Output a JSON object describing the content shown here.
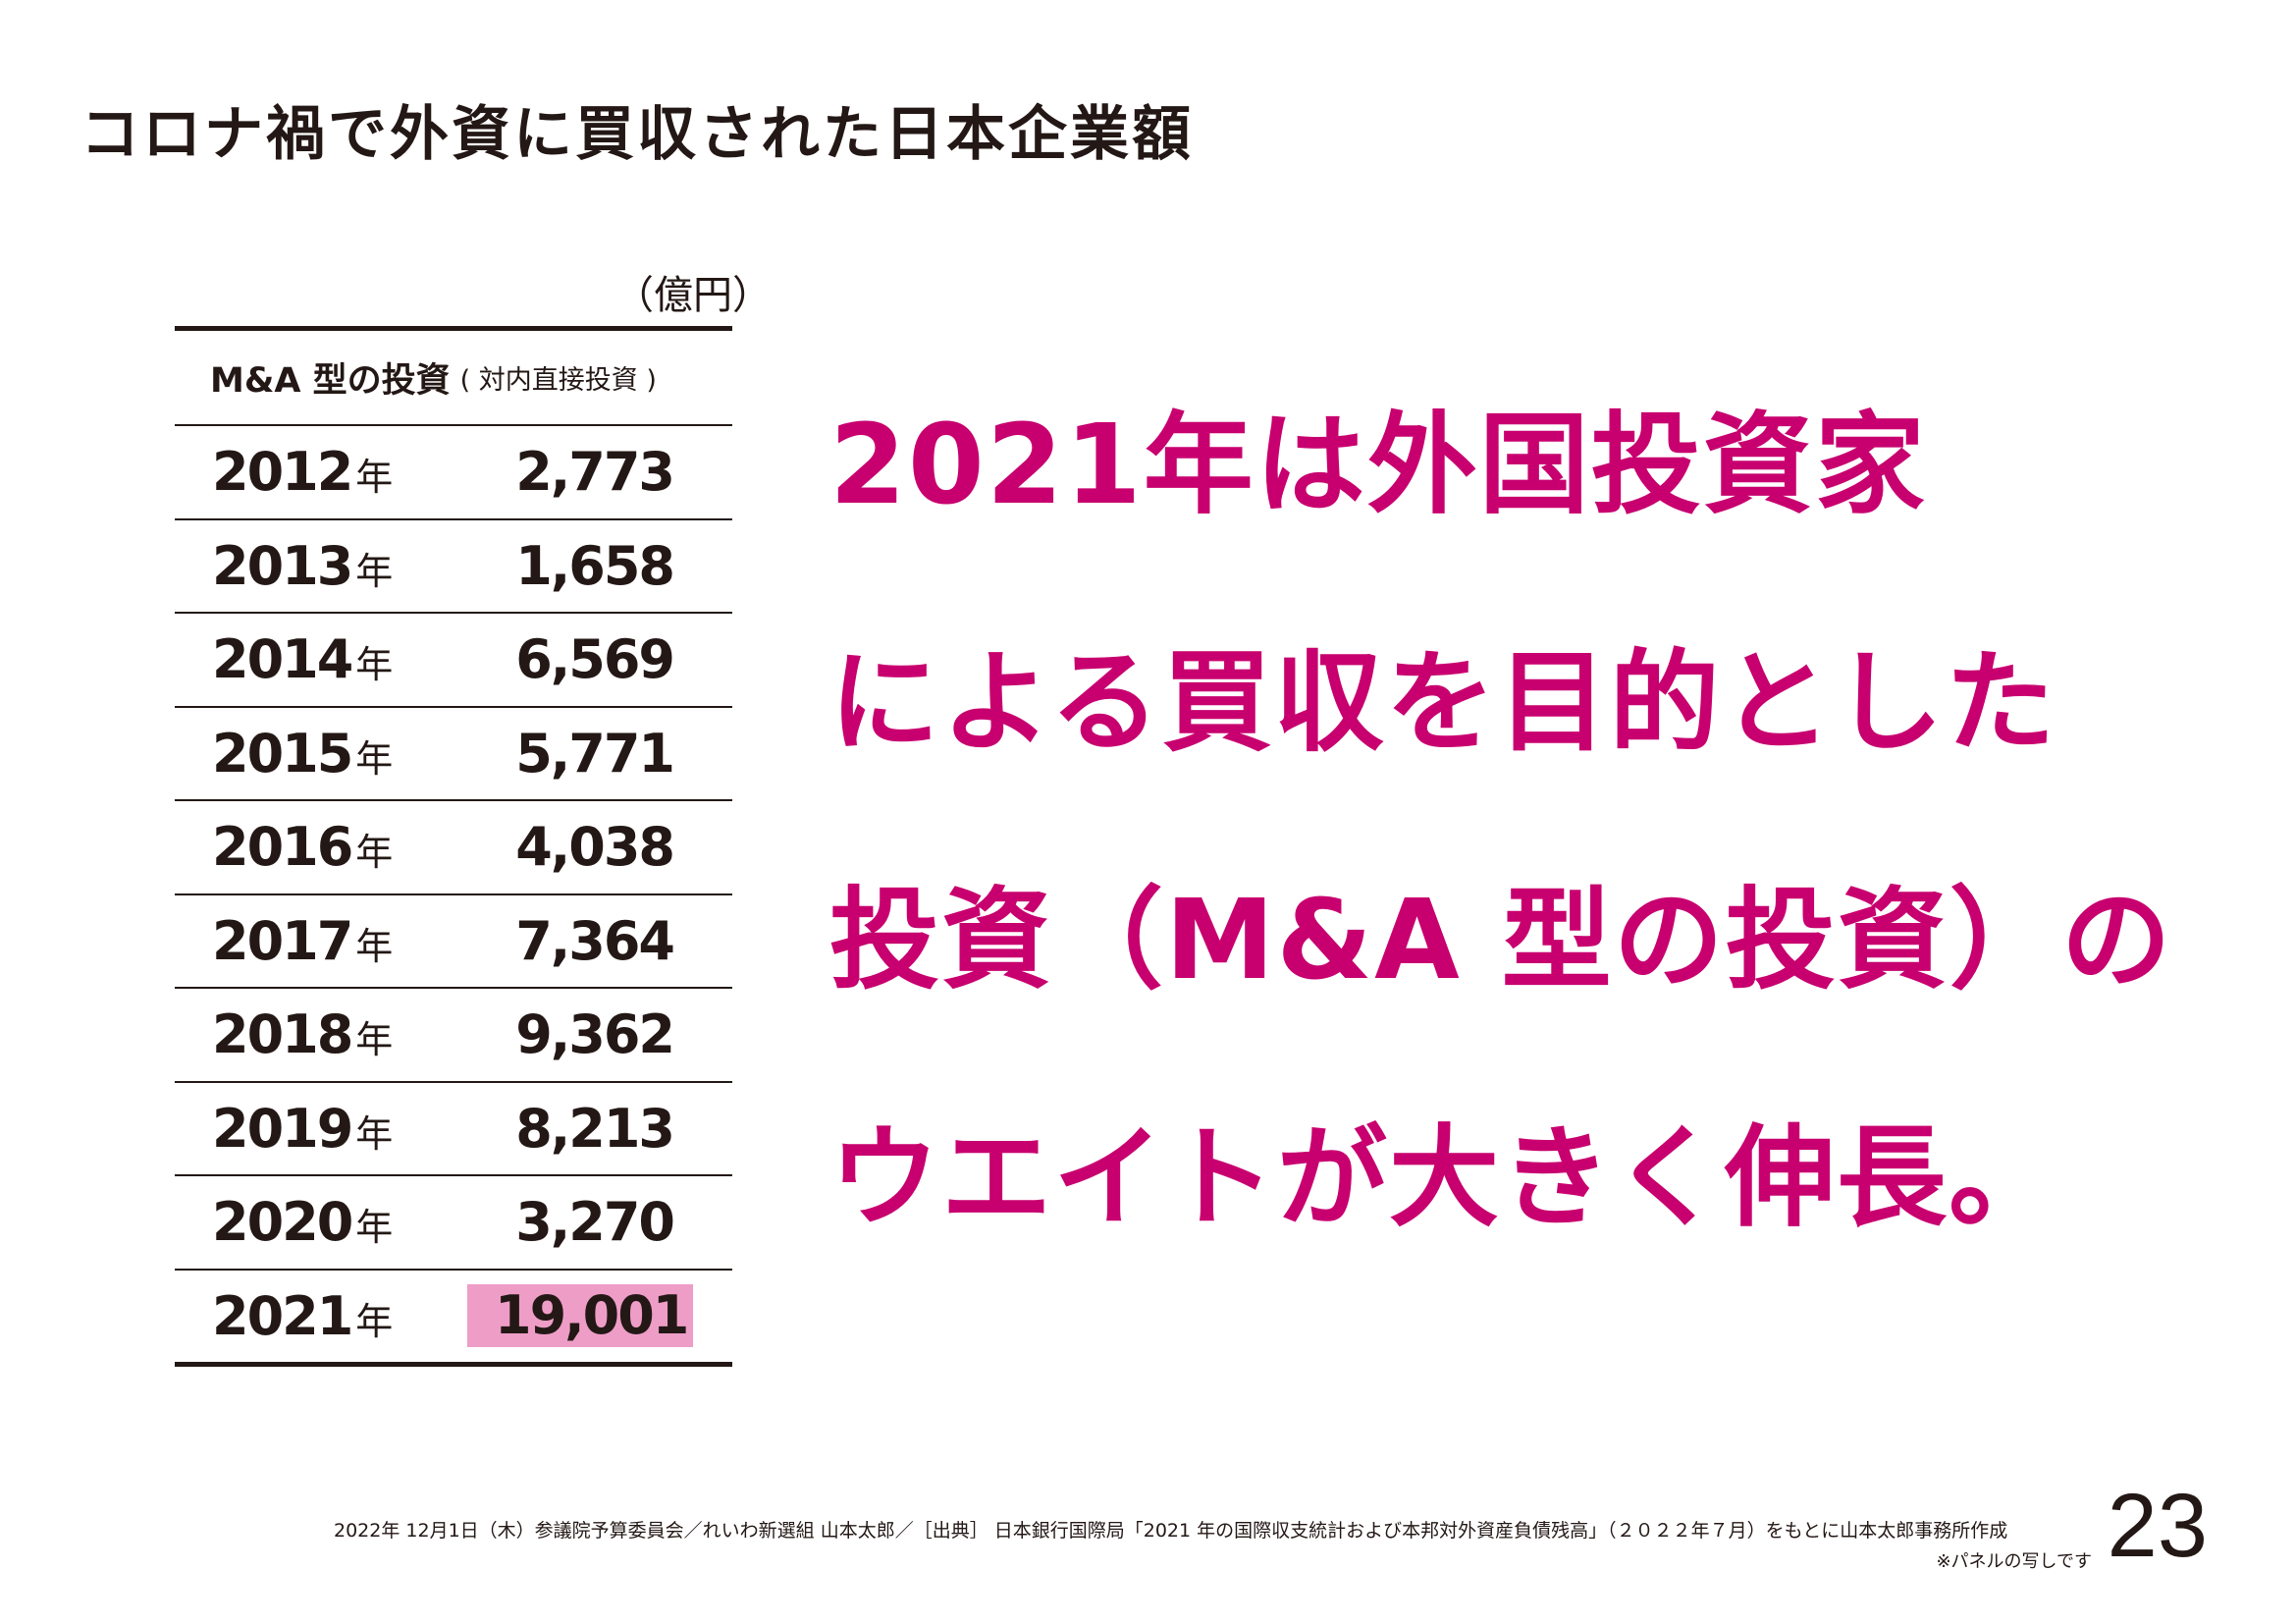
{
  "title": "コロナ禍で外資に買収された日本企業額",
  "table": {
    "unit": "（億円）",
    "header_main": "M&A 型の投資",
    "header_sub": "( 対内直接投資 )",
    "year_suffix": "年",
    "rows": [
      {
        "year": "2012",
        "value": "2,773"
      },
      {
        "year": "2013",
        "value": "1,658"
      },
      {
        "year": "2014",
        "value": "6,569"
      },
      {
        "year": "2015",
        "value": "5,771"
      },
      {
        "year": "2016",
        "value": "4,038"
      },
      {
        "year": "2017",
        "value": "7,364"
      },
      {
        "year": "2018",
        "value": "9,362"
      },
      {
        "year": "2019",
        "value": "8,213"
      },
      {
        "year": "2020",
        "value": "3,270"
      },
      {
        "year": "2021",
        "value": "19,001"
      }
    ],
    "highlight_color": "#ee9dc7"
  },
  "headline": {
    "color": "#c8006f",
    "lines": [
      "2021年は外国投資家",
      "による買収を目的とした",
      "投資（M&A 型の投資）の",
      "ウエイトが大きく伸長。"
    ]
  },
  "footer": {
    "source": "2022年 12月1日（木）参議院予算委員会／れいわ新選組 山本太郎／［出典］ 日本銀行国際局「2021 年の国際収支統計および本邦対外資産負債残高」（２０２２年７月）をもとに山本太郎事務所作成",
    "note": "※パネルの写しです",
    "page_number": "23"
  }
}
